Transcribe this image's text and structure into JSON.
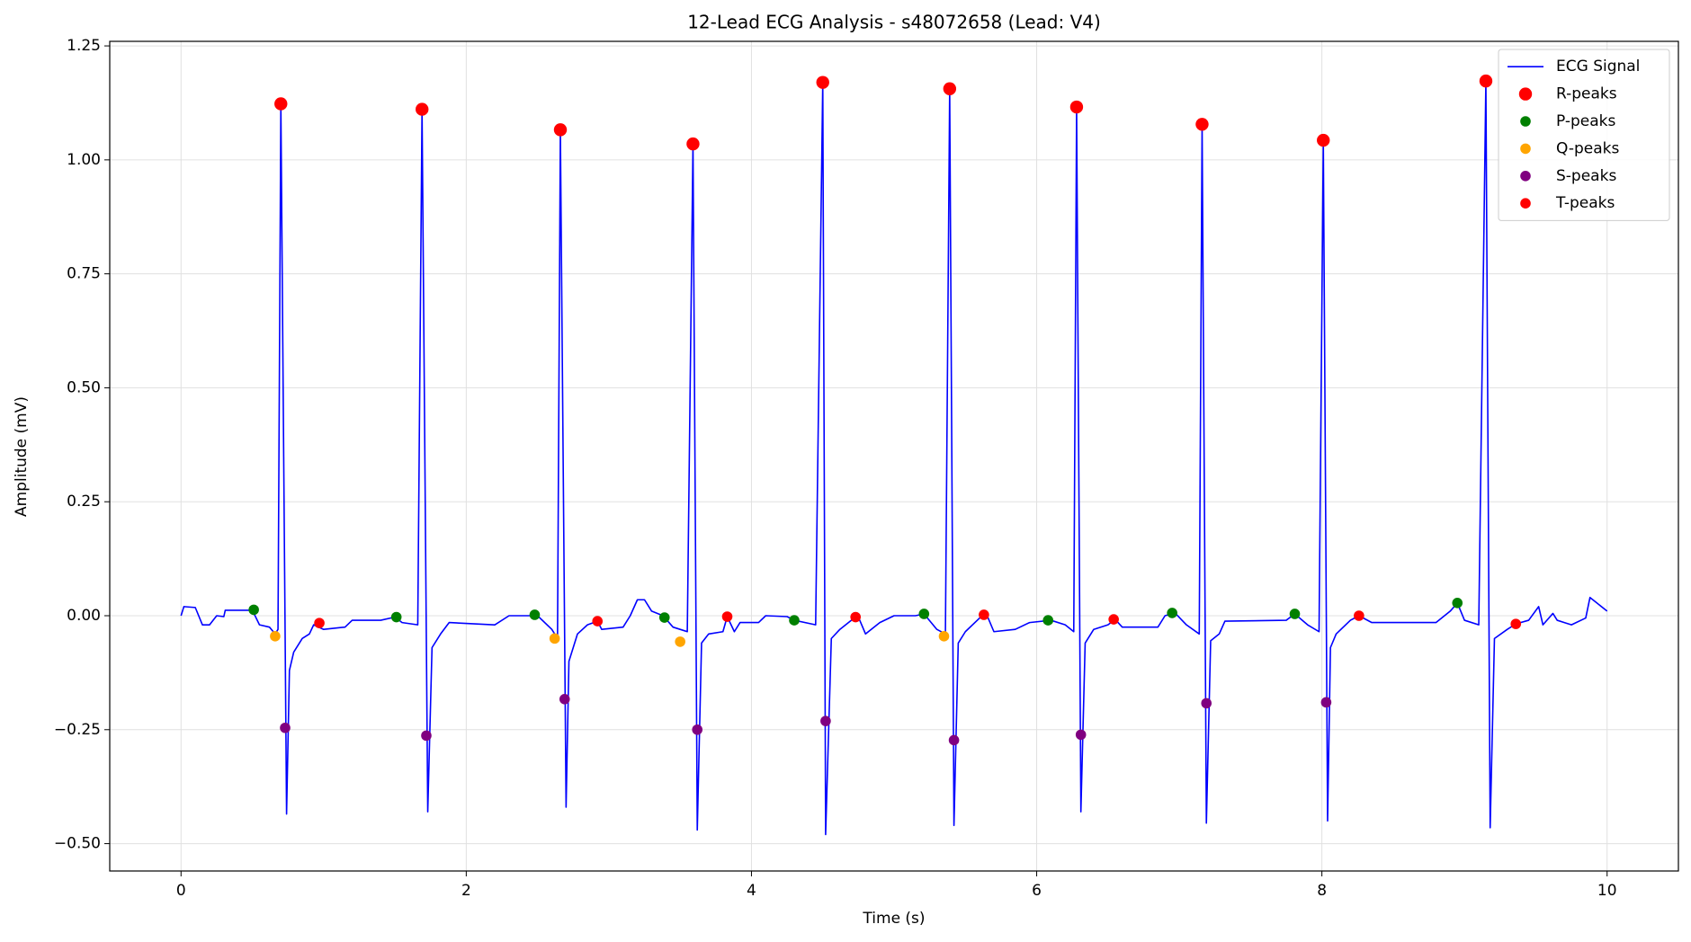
{
  "chart_data": {
    "type": "line",
    "title": "12-Lead ECG Analysis - s48072658 (Lead: V4)",
    "x_label": "Time (s)",
    "y_label": "Amplitude (mV)",
    "xlim": [
      -0.5,
      10.5
    ],
    "ylim": [
      -0.56,
      1.26
    ],
    "xticks": [
      0,
      2,
      4,
      6,
      8,
      10
    ],
    "yticks": [
      {
        "value": -0.5,
        "label": "−0.50"
      },
      {
        "value": -0.25,
        "label": "−0.25"
      },
      {
        "value": 0,
        "label": "0.00"
      },
      {
        "value": 0.25,
        "label": "0.25"
      },
      {
        "value": 0.5,
        "label": "0.50"
      },
      {
        "value": 0.75,
        "label": "0.75"
      },
      {
        "value": 1,
        "label": "1.00"
      },
      {
        "value": 1.25,
        "label": "1.25"
      }
    ],
    "grid": true,
    "legend": "upper right",
    "series": [
      {
        "name": "ECG Signal",
        "color": "#0000ff",
        "style": "line",
        "x": [
          0,
          0.02,
          0.1,
          0.15,
          0.2,
          0.25,
          0.3,
          0.31,
          0.5,
          0.55,
          0.62,
          0.66,
          0.68,
          0.7,
          0.74,
          0.76,
          0.79,
          0.85,
          0.9,
          0.93,
          1.0,
          1.15,
          1.2,
          1.4,
          1.5,
          1.55,
          1.66,
          1.69,
          1.73,
          1.76,
          1.82,
          1.88,
          2.2,
          2.3,
          2.5,
          2.6,
          2.64,
          2.66,
          2.7,
          2.72,
          2.78,
          2.85,
          2.92,
          2.95,
          3.1,
          3.15,
          3.2,
          3.25,
          3.3,
          3.38,
          3.45,
          3.55,
          3.59,
          3.62,
          3.65,
          3.7,
          3.8,
          3.83,
          3.88,
          3.92,
          4.05,
          4.1,
          4.25,
          4.3,
          4.45,
          4.5,
          4.52,
          4.56,
          4.62,
          4.7,
          4.75,
          4.8,
          4.9,
          5.0,
          5.15,
          5.21,
          5.3,
          5.36,
          5.39,
          5.42,
          5.45,
          5.5,
          5.6,
          5.65,
          5.7,
          5.85,
          5.95,
          6.1,
          6.2,
          6.26,
          6.28,
          6.31,
          6.34,
          6.4,
          6.5,
          6.55,
          6.6,
          6.85,
          6.9,
          6.97,
          7.05,
          7.14,
          7.16,
          7.19,
          7.22,
          7.28,
          7.32,
          7.75,
          7.81,
          7.9,
          7.98,
          8.01,
          8.04,
          8.06,
          8.1,
          8.2,
          8.26,
          8.35,
          8.8,
          8.9,
          8.95,
          9.0,
          9.1,
          9.15,
          9.18,
          9.21,
          9.3,
          9.36,
          9.45,
          9.52,
          9.55,
          9.62,
          9.65,
          9.7,
          9.75,
          9.85,
          9.88,
          9.92,
          10.0
        ],
        "values": [
          0,
          0.02,
          0.018,
          -0.02,
          -0.02,
          0,
          -0.002,
          0.012,
          0.012,
          -0.02,
          -0.025,
          -0.04,
          -0.03,
          1.123,
          -0.435,
          -0.12,
          -0.08,
          -0.05,
          -0.04,
          -0.02,
          -0.03,
          -0.025,
          -0.01,
          -0.01,
          -0.003,
          -0.015,
          -0.02,
          1.111,
          -0.43,
          -0.07,
          -0.04,
          -0.015,
          -0.02,
          0,
          0,
          -0.03,
          -0.05,
          1.066,
          -0.42,
          -0.1,
          -0.04,
          -0.02,
          -0.012,
          -0.03,
          -0.025,
          0,
          0.035,
          0.035,
          0.01,
          0,
          -0.025,
          -0.035,
          1.035,
          -0.47,
          -0.06,
          -0.04,
          -0.035,
          -0.002,
          -0.035,
          -0.015,
          -0.015,
          0,
          -0.002,
          -0.01,
          -0.02,
          1.17,
          -0.48,
          -0.05,
          -0.03,
          -0.01,
          -0.003,
          -0.04,
          -0.015,
          0,
          0,
          0.004,
          -0.03,
          -0.04,
          1.156,
          -0.46,
          -0.06,
          -0.035,
          -0.005,
          0.002,
          -0.035,
          -0.03,
          -0.015,
          -0.01,
          -0.02,
          -0.035,
          1.116,
          -0.43,
          -0.06,
          -0.03,
          -0.02,
          -0.008,
          -0.025,
          -0.025,
          0,
          0.006,
          -0.02,
          -0.04,
          1.078,
          -0.455,
          -0.055,
          -0.04,
          -0.012,
          -0.01,
          0.004,
          -0.02,
          -0.035,
          1.043,
          -0.45,
          -0.07,
          -0.04,
          -0.01,
          0,
          -0.015,
          -0.015,
          0.01,
          0.028,
          -0.01,
          -0.02,
          1.173,
          -0.465,
          -0.05,
          -0.03,
          -0.018,
          -0.01,
          0.02,
          -0.02,
          0.005,
          -0.01,
          -0.015,
          -0.02,
          -0.005,
          0.04,
          0.03,
          0.01
        ]
      },
      {
        "name": "R-peaks",
        "color": "#ff0000",
        "style": "markers",
        "marker": "large",
        "x": [
          0.7,
          1.69,
          2.66,
          3.59,
          4.5,
          5.39,
          6.28,
          7.16,
          8.01,
          9.15
        ],
        "values": [
          1.123,
          1.111,
          1.066,
          1.035,
          1.17,
          1.156,
          1.116,
          1.078,
          1.043,
          1.173
        ]
      },
      {
        "name": "P-peaks",
        "color": "#008000",
        "style": "markers",
        "marker": "small",
        "x": [
          0.51,
          1.51,
          2.48,
          3.39,
          4.3,
          5.21,
          6.08,
          6.95,
          7.81,
          8.95
        ],
        "values": [
          0.013,
          -0.003,
          0.002,
          -0.004,
          -0.01,
          0.004,
          -0.01,
          0.006,
          0.004,
          0.028
        ]
      },
      {
        "name": "Q-peaks",
        "color": "#ffa500",
        "style": "markers",
        "marker": "small",
        "x": [
          0.66,
          2.62,
          3.5,
          5.35
        ],
        "values": [
          -0.045,
          -0.05,
          -0.057,
          -0.045
        ]
      },
      {
        "name": "S-peaks",
        "color": "#800080",
        "style": "markers",
        "marker": "small",
        "x": [
          0.73,
          1.72,
          2.69,
          3.62,
          4.52,
          5.42,
          6.31,
          7.19,
          8.03
        ],
        "values": [
          -0.246,
          -0.263,
          -0.183,
          -0.25,
          -0.231,
          -0.273,
          -0.261,
          -0.192,
          -0.19
        ]
      },
      {
        "name": "T-peaks",
        "color": "#ff0000",
        "style": "markers",
        "marker": "small",
        "x": [
          0.97,
          2.92,
          3.83,
          4.73,
          5.63,
          6.54,
          8.26,
          9.36
        ],
        "values": [
          -0.016,
          -0.012,
          -0.002,
          -0.003,
          0.002,
          -0.008,
          0,
          -0.018
        ]
      }
    ]
  }
}
